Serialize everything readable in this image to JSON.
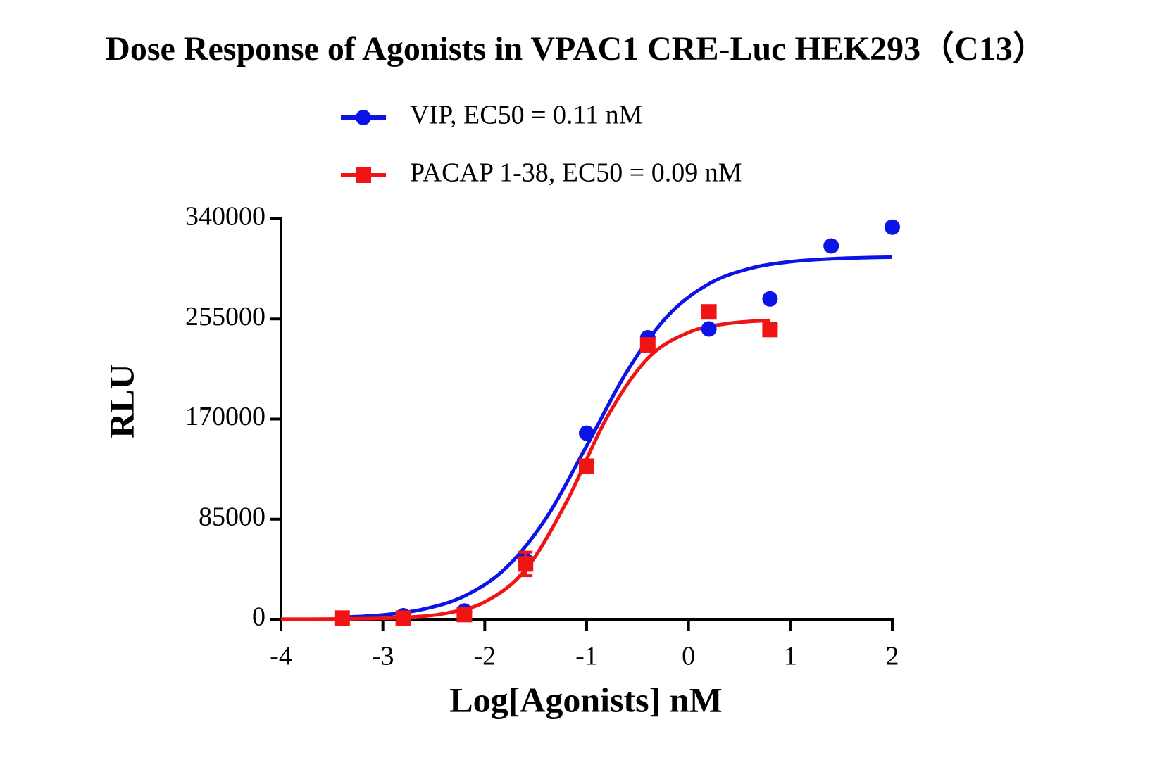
{
  "chart_data": {
    "type": "scatter",
    "title": "Dose Response of Agonists in VPAC1 CRE-Luc HEK293（C13）",
    "x_label": "Log[Agonists] nM",
    "y_label": "RLU",
    "xlim": [
      -4,
      2
    ],
    "xticks": [
      -4,
      -3,
      -2,
      -1,
      0,
      1,
      2
    ],
    "ylim": [
      0,
      340000
    ],
    "yticks": [
      0,
      85000,
      170000,
      255000,
      340000
    ],
    "legend": "top",
    "series": [
      {
        "name": "VIP, EC50 = 0.11 nM",
        "color": "#0a14e6",
        "marker": "circle",
        "x": [
          -3.4,
          -2.8,
          -2.2,
          -1.6,
          -1.0,
          -0.4,
          0.2,
          0.8,
          1.4,
          2.0
        ],
        "values": [
          1000,
          3000,
          7000,
          50000,
          158000,
          239000,
          246500,
          272000,
          317000,
          333000
        ],
        "fit_x": [
          -3.4,
          -3.0,
          -2.6,
          -2.2,
          -1.8,
          -1.4,
          -1.0,
          -0.6,
          -0.2,
          0.2,
          0.6,
          1.0,
          1.4,
          1.7,
          2.0
        ],
        "fit_values": [
          1600,
          3700,
          8600,
          19700,
          42900,
          85600,
          147200,
          211000,
          258000,
          284800,
          297800,
          303600,
          306100,
          307000,
          307500
        ]
      },
      {
        "name": "PACAP 1-38, EC50 = 0.09 nM",
        "color": "#f01414",
        "marker": "square",
        "x": [
          -3.4,
          -2.8,
          -2.2,
          -1.6,
          -1.0,
          -0.4,
          0.2,
          0.8
        ],
        "values": [
          1000,
          1000,
          4000,
          47000,
          130000,
          233000,
          261000,
          246000
        ],
        "errors": [
          null,
          null,
          null,
          10000,
          null,
          null,
          null,
          null
        ],
        "fit_x": [
          -4.0,
          -3.6,
          -3.2,
          -2.8,
          -2.4,
          -2.0,
          -1.6,
          -1.2,
          -0.8,
          -0.4,
          0.0,
          0.4,
          0.8
        ],
        "fit_values": [
          45,
          145,
          500,
          1500,
          4800,
          14700,
          42000,
          99200,
          171500,
          221500,
          243500,
          251300,
          253800
        ]
      }
    ]
  }
}
